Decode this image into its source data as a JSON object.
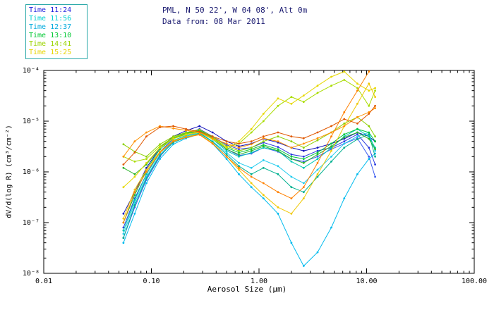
{
  "header": {
    "title_line1": "PML, N 50 22', W 04 08', Alt 0m",
    "title_line2": "Data from: 08 Mar 2011",
    "title_color": "#1a1a70"
  },
  "legend": {
    "items": [
      {
        "label": "Time 11:24",
        "color": "#2222dd"
      },
      {
        "label": "Time 11:56",
        "color": "#00d2d2"
      },
      {
        "label": "Time 12:37",
        "color": "#00aadd"
      },
      {
        "label": "Time 13:10",
        "color": "#00c832"
      },
      {
        "label": "Time 14:41",
        "color": "#9ad400"
      },
      {
        "label": "Time 15:25",
        "color": "#e8d400"
      }
    ]
  },
  "chart_data": {
    "type": "line",
    "title": "PML, N 50 22', W 04 08', Alt 0m",
    "subtitle": "Data from: 08 Mar 2011",
    "x_axis": {
      "label": "Aerosol Size (μm)",
      "scale": "log",
      "min": 0.01,
      "max": 100,
      "tick_values": [
        0.01,
        0.1,
        1,
        10,
        100
      ],
      "tick_labels": [
        "0.01",
        "0.10",
        "1.00",
        "10.00",
        "100.00"
      ]
    },
    "y_axis": {
      "label": "dV/d(log R) (cm³/cm⁻²)",
      "scale": "log",
      "min": 1e-08,
      "max": 0.0001,
      "tick_values": [
        1e-08,
        1e-07,
        1e-06,
        1e-05,
        0.0001
      ],
      "tick_labels": [
        "10⁻⁸",
        "10⁻⁷",
        "10⁻⁶",
        "10⁻⁵",
        "10⁻⁴"
      ]
    },
    "x": [
      0.055,
      0.07,
      0.09,
      0.12,
      0.16,
      0.21,
      0.28,
      0.37,
      0.5,
      0.65,
      0.85,
      1.1,
      1.5,
      2.0,
      2.6,
      3.5,
      4.7,
      6.2,
      8.2,
      10.5,
      12.0
    ],
    "series": [
      {
        "legend_group": "Time 11:24",
        "color": "#1111bb",
        "values": [
          1.5e-07,
          4e-07,
          1.2e-06,
          3e-06,
          5e-06,
          6.5e-06,
          8e-06,
          6e-06,
          4e-06,
          3.2e-06,
          3.6e-06,
          4.5e-06,
          3.8e-06,
          3e-06,
          2.6e-06,
          3e-06,
          3.6e-06,
          4.5e-06,
          6e-06,
          5e-06,
          4e-06
        ]
      },
      {
        "legend_group": "Time 11:24",
        "color": "#2a3ae0",
        "values": [
          8e-08,
          3e-07,
          9e-07,
          2.5e-06,
          4.5e-06,
          5.6e-06,
          7e-06,
          5e-06,
          3.4e-06,
          2.8e-06,
          3e-06,
          3.8e-06,
          3.1e-06,
          2.2e-06,
          2e-06,
          2.6e-06,
          3e-06,
          4e-06,
          5.5e-06,
          3e-06,
          1.4e-06
        ]
      },
      {
        "legend_group": "Time 11:24",
        "color": "#3b5bf0",
        "values": [
          5e-08,
          2e-07,
          7e-07,
          2e-06,
          4e-06,
          5e-06,
          6.2e-06,
          4.5e-06,
          2.8e-06,
          2.1e-06,
          2.3e-06,
          3e-06,
          2.5e-06,
          1.8e-06,
          1.6e-06,
          2e-06,
          2.8e-06,
          3.6e-06,
          4.6e-06,
          2e-06,
          8e-07
        ]
      },
      {
        "legend_group": "Time 11:56",
        "color": "#00bbee",
        "values": [
          4e-08,
          1.5e-07,
          6e-07,
          1.8e-06,
          3.5e-06,
          4.6e-06,
          5.6e-06,
          3.6e-06,
          1.8e-06,
          9e-07,
          5e-07,
          3e-07,
          1.5e-07,
          4e-08,
          1.4e-08,
          2.6e-08,
          8e-08,
          3e-07,
          9e-07,
          1.8e-06,
          2.3e-06
        ]
      },
      {
        "legend_group": "Time 11:56",
        "color": "#22ccee",
        "values": [
          6e-08,
          2.5e-07,
          8e-07,
          2.2e-06,
          4e-06,
          5e-06,
          6e-06,
          4e-06,
          2.4e-06,
          1.5e-06,
          1.2e-06,
          1.7e-06,
          1.3e-06,
          8e-07,
          6e-07,
          1.1e-06,
          2e-06,
          3.6e-06,
          5e-06,
          6e-06,
          2.6e-06
        ]
      },
      {
        "legend_group": "Time 12:37",
        "color": "#00c8b4",
        "values": [
          7e-08,
          2.8e-07,
          9e-07,
          2.4e-06,
          4.2e-06,
          5.2e-06,
          6.3e-06,
          4.4e-06,
          2.6e-06,
          2e-06,
          2.4e-06,
          3e-06,
          2.6e-06,
          1.6e-06,
          1.2e-06,
          1.8e-06,
          3e-06,
          5e-06,
          7e-06,
          5e-06,
          3e-06
        ]
      },
      {
        "legend_group": "Time 12:37",
        "color": "#00b090",
        "values": [
          5e-08,
          2.2e-07,
          7.5e-07,
          2.1e-06,
          3.8e-06,
          4.8e-06,
          5.8e-06,
          3.9e-06,
          2.2e-06,
          1.3e-06,
          9e-07,
          1.2e-06,
          9e-07,
          5e-07,
          4e-07,
          8e-07,
          1.6e-06,
          3e-06,
          4.4e-06,
          5.5e-06,
          2e-06
        ]
      },
      {
        "legend_group": "Time 13:10",
        "color": "#00c83c",
        "values": [
          1e-07,
          3.5e-07,
          1.1e-06,
          2.8e-06,
          4.6e-06,
          5.6e-06,
          6.6e-06,
          4.8e-06,
          3e-06,
          2.4e-06,
          2.8e-06,
          3.4e-06,
          2.8e-06,
          2e-06,
          1.8e-06,
          2.4e-06,
          3.6e-06,
          5.5e-06,
          7e-06,
          6e-06,
          4e-06
        ]
      },
      {
        "legend_group": "Time 13:10",
        "color": "#2bb42b",
        "values": [
          1.2e-06,
          9e-07,
          1.4e-06,
          3e-06,
          4.8e-06,
          5.8e-06,
          6.4e-06,
          4.6e-06,
          2.8e-06,
          2.2e-06,
          2.6e-06,
          3.2e-06,
          2.6e-06,
          1.8e-06,
          1.5e-06,
          2.2e-06,
          3.2e-06,
          4.8e-06,
          6e-06,
          4.5e-06,
          2.8e-06
        ]
      },
      {
        "legend_group": "Time 14:41",
        "color": "#8cd000",
        "values": [
          3.5e-06,
          2.5e-06,
          2e-06,
          3.5e-06,
          5e-06,
          6e-06,
          6.8e-06,
          5e-06,
          3.2e-06,
          2.6e-06,
          3e-06,
          4e-06,
          5e-06,
          4e-06,
          3e-06,
          4.2e-06,
          6e-06,
          9e-06,
          1.2e-05,
          8e-06,
          5e-06
        ]
      },
      {
        "legend_group": "Time 14:41",
        "color": "#a8dc00",
        "values": [
          2e-06,
          1.6e-06,
          1.8e-06,
          3.2e-06,
          4.8e-06,
          5.6e-06,
          6.2e-06,
          4.6e-06,
          3e-06,
          3.6e-06,
          6e-06,
          1e-05,
          2e-05,
          3e-05,
          2.4e-05,
          3.6e-05,
          5e-05,
          6.5e-05,
          4.5e-05,
          2e-05,
          4e-05
        ]
      },
      {
        "legend_group": "Time 15:25",
        "color": "#e6d800",
        "values": [
          5e-07,
          8e-07,
          1.5e-06,
          3e-06,
          4.5e-06,
          5.4e-06,
          6e-06,
          4.4e-06,
          3e-06,
          4e-06,
          7e-06,
          1.4e-05,
          2.8e-05,
          2.2e-05,
          3.2e-05,
          5e-05,
          7.5e-05,
          9.5e-05,
          5.5e-05,
          4e-05,
          4.5e-05
        ]
      },
      {
        "legend_group": "Time 15:25",
        "color": "#f0c800",
        "values": [
          1.2e-07,
          4.5e-07,
          1.1e-06,
          2.5e-06,
          4.1e-06,
          4.9e-06,
          5.5e-06,
          3.7e-06,
          2e-06,
          1.1e-06,
          6e-07,
          3.5e-07,
          2e-07,
          1.5e-07,
          3e-07,
          9e-07,
          2.6e-06,
          8e-06,
          2.2e-05,
          5.5e-05,
          3e-05
        ]
      },
      {
        "legend_group": "series-orange-1",
        "color": "#ff9100",
        "values": [
          2e-06,
          4e-06,
          6e-06,
          8e-06,
          7.2e-06,
          6.6e-06,
          6e-06,
          4.6e-06,
          3.6e-06,
          3e-06,
          3.5e-06,
          4.6e-06,
          4e-06,
          3e-06,
          3.6e-06,
          4.6e-06,
          6e-06,
          8e-06,
          1.2e-05,
          1.5e-05,
          1.8e-05
        ]
      },
      {
        "legend_group": "series-orange-2",
        "color": "#e05800",
        "values": [
          1.4e-06,
          2.4e-06,
          5e-06,
          7.6e-06,
          8e-06,
          7e-06,
          6.2e-06,
          5e-06,
          4e-06,
          3.6e-06,
          4e-06,
          5e-06,
          6e-06,
          5e-06,
          4.6e-06,
          6e-06,
          8e-06,
          1.1e-05,
          9e-06,
          1.4e-05,
          2e-05
        ]
      },
      {
        "legend_group": "series-orange-3",
        "color": "#ff8000",
        "values": [
          1e-07,
          4e-07,
          1e-06,
          2.4e-06,
          4e-06,
          4.8e-06,
          5.4e-06,
          3.6e-06,
          2e-06,
          1.2e-06,
          8e-07,
          6e-07,
          4e-07,
          3e-07,
          5e-07,
          1.5e-06,
          5e-06,
          1.5e-05,
          4e-05,
          9.5e-05,
          0.00018
        ]
      }
    ]
  }
}
